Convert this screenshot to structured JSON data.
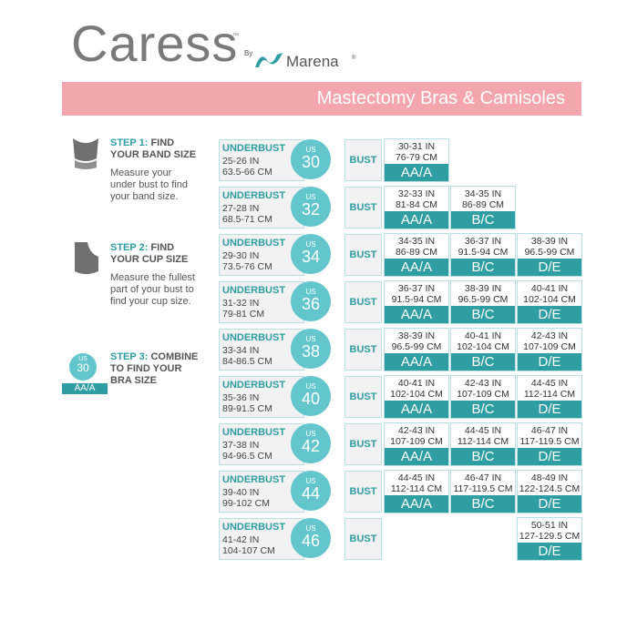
{
  "header": {
    "brand": "Caress",
    "tm": "™",
    "by": "By",
    "partner": "Marena",
    "reg": "®",
    "banner": "Mastectomy Bras & Camisoles"
  },
  "labels": {
    "underbust": "UNDERBUST",
    "us": "US",
    "bust": "BUST"
  },
  "steps": [
    {
      "step": "STEP 1:",
      "title": "FIND YOUR BAND SIZE",
      "text": "Measure your under bust to find your band size."
    },
    {
      "step": "STEP 2:",
      "title": "FIND YOUR CUP SIZE",
      "text": "Measure the fullest part of your bust  to find your cup size."
    },
    {
      "step": "STEP 3:",
      "title": "COMBINE TO FIND YOUR BRA SIZE",
      "example": {
        "us": "US",
        "size": "30",
        "cup": "AA/A"
      }
    }
  ],
  "rows": [
    {
      "in": "25-26 IN",
      "cm": "63.5-66 CM",
      "size": "30",
      "cells": [
        {
          "in": "30-31 IN",
          "cm": "76-79 CM",
          "cup": "AA/A"
        },
        null,
        null
      ]
    },
    {
      "in": "27-28 IN",
      "cm": "68.5-71 CM",
      "size": "32",
      "cells": [
        {
          "in": "32-33 IN",
          "cm": "81-84 CM",
          "cup": "AA/A"
        },
        {
          "in": "34-35 IN",
          "cm": "86-89 CM",
          "cup": "B/C"
        },
        null
      ]
    },
    {
      "in": "29-30 IN",
      "cm": "73.5-76 CM",
      "size": "34",
      "cells": [
        {
          "in": "34-35 IN",
          "cm": "86-89 CM",
          "cup": "AA/A"
        },
        {
          "in": "36-37 IN",
          "cm": "91.5-94 CM",
          "cup": "B/C"
        },
        {
          "in": "38-39 IN",
          "cm": "96.5-99 CM",
          "cup": "D/E"
        }
      ]
    },
    {
      "in": "31-32 IN",
      "cm": "79-81 CM",
      "size": "36",
      "cells": [
        {
          "in": "36-37 IN",
          "cm": "91.5-94 CM",
          "cup": "AA/A"
        },
        {
          "in": "38-39 IN",
          "cm": "96.5-99 CM",
          "cup": "B/C"
        },
        {
          "in": "40-41 IN",
          "cm": "102-104 CM",
          "cup": "D/E"
        }
      ]
    },
    {
      "in": "33-34 IN",
      "cm": "84-86.5 CM",
      "size": "38",
      "cells": [
        {
          "in": "38-39 IN",
          "cm": "96.5-99 CM",
          "cup": "AA/A"
        },
        {
          "in": "40-41 IN",
          "cm": "102-104 CM",
          "cup": "B/C"
        },
        {
          "in": "42-43 IN",
          "cm": "107-109 CM",
          "cup": "D/E"
        }
      ]
    },
    {
      "in": "35-36 IN",
      "cm": "89-91.5 CM",
      "size": "40",
      "cells": [
        {
          "in": "40-41 IN",
          "cm": "102-104 CM",
          "cup": "AA/A"
        },
        {
          "in": "42-43 IN",
          "cm": "107-109 CM",
          "cup": "B/C"
        },
        {
          "in": "44-45 IN",
          "cm": "112-114 CM",
          "cup": "D/E"
        }
      ]
    },
    {
      "in": "37-38 IN",
      "cm": "94-96.5 CM",
      "size": "42",
      "cells": [
        {
          "in": "42-43 IN",
          "cm": "107-109 CM",
          "cup": "AA/A"
        },
        {
          "in": "44-45 IN",
          "cm": "112-114 CM",
          "cup": "B/C"
        },
        {
          "in": "46-47 IN",
          "cm": "117-119.5 CM",
          "cup": "D/E"
        }
      ]
    },
    {
      "in": "39-40 IN",
      "cm": "99-102 CM",
      "size": "44",
      "cells": [
        {
          "in": "44-45 IN",
          "cm": "112-114 CM",
          "cup": "AA/A"
        },
        {
          "in": "46-47 IN",
          "cm": "117-119.5 CM",
          "cup": "B/C"
        },
        {
          "in": "48-49 IN",
          "cm": "122-124.5 CM",
          "cup": "D/E"
        }
      ]
    },
    {
      "in": "41-42 IN",
      "cm": "104-107 CM",
      "size": "46",
      "cells": [
        null,
        null,
        {
          "in": "50-51 IN",
          "cm": "127-129.5 CM",
          "cup": "D/E"
        }
      ]
    }
  ]
}
